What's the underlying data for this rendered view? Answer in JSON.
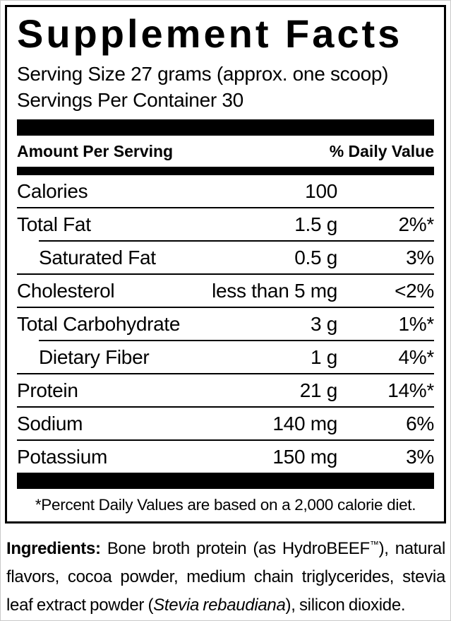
{
  "title": "Supplement Facts",
  "serving": {
    "size_line": "Serving Size 27 grams (approx. one scoop)",
    "per_container_line": "Servings Per Container 30"
  },
  "table": {
    "header": {
      "amount_per_serving": "Amount Per Serving",
      "daily_value": "% Daily Value"
    },
    "rows": [
      {
        "label": "Calories",
        "amount": "100",
        "dv": ""
      },
      {
        "label": "Total Fat",
        "amount": "1.5 g",
        "dv": "2%*"
      },
      {
        "label": "Saturated Fat",
        "amount": "0.5 g",
        "dv": "3%"
      },
      {
        "label": "Cholesterol",
        "amount": "less than 5 mg",
        "dv": "<2%"
      },
      {
        "label": "Total Carbohydrate",
        "amount": "3 g",
        "dv": "1%*"
      },
      {
        "label": "Dietary Fiber",
        "amount": "1 g",
        "dv": "4%*"
      },
      {
        "label": "Protein",
        "amount": "21 g",
        "dv": "14%*"
      },
      {
        "label": "Sodium",
        "amount": "140 mg",
        "dv": "6%"
      },
      {
        "label": "Potassium",
        "amount": "150 mg",
        "dv": "3%"
      }
    ],
    "footnote": "*Percent Daily Values are based on a 2,000 calorie diet."
  },
  "ingredients": {
    "label": "Ingredients:",
    "part1": " Bone broth protein (as HydroBEEF",
    "trademark": "™",
    "part2": "), natural flavors, cocoa powder, medium chain triglycerides, stevia leaf extract powder (",
    "latin_name": "Stevia rebaudiana",
    "part3": "), silicon dioxide."
  },
  "colors": {
    "ink": "#000000",
    "background": "#ffffff",
    "outer_border": "#c9c9c9"
  }
}
